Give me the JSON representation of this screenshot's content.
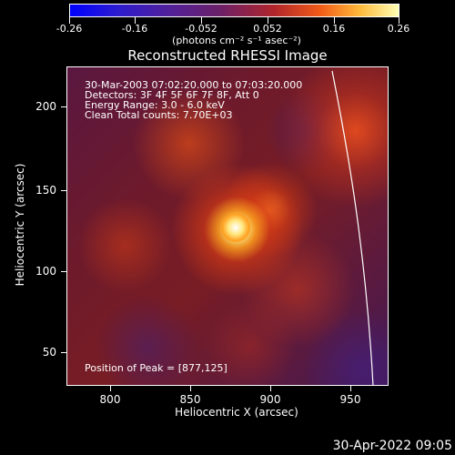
{
  "colorbar": {
    "ticks": [
      "-0.26",
      "-0.16",
      "-0.052",
      "0.052",
      "0.16",
      "0.26"
    ],
    "units": "(photons cm⁻² s⁻¹ asec⁻²)"
  },
  "plot": {
    "title": "Reconstructed RHESSI Image",
    "info_lines": [
      "30-Mar-2003 07:02:20.000 to 07:03:20.000",
      "Detectors: 3F 4F 5F 6F 7F 8F, Att 0",
      "Energy Range: 3.0 - 6.0 keV",
      "Clean     Total counts: 7.70E+03"
    ],
    "peak_text": "Position of Peak = [877,125]",
    "x_axis": {
      "label": "Heliocentric X (arcsec)",
      "ticks": [
        "800",
        "850",
        "900",
        "950"
      ],
      "range": [
        778,
        968
      ]
    },
    "y_axis": {
      "label": "Heliocentric Y (arcsec)",
      "ticks": [
        "50",
        "100",
        "150",
        "200"
      ],
      "range": [
        32,
        225
      ]
    }
  },
  "footer": {
    "date": "30-Apr-2022 09:05"
  },
  "colors": {
    "background": "#000000",
    "axes": "#ffffff",
    "text": "#ffffff"
  }
}
